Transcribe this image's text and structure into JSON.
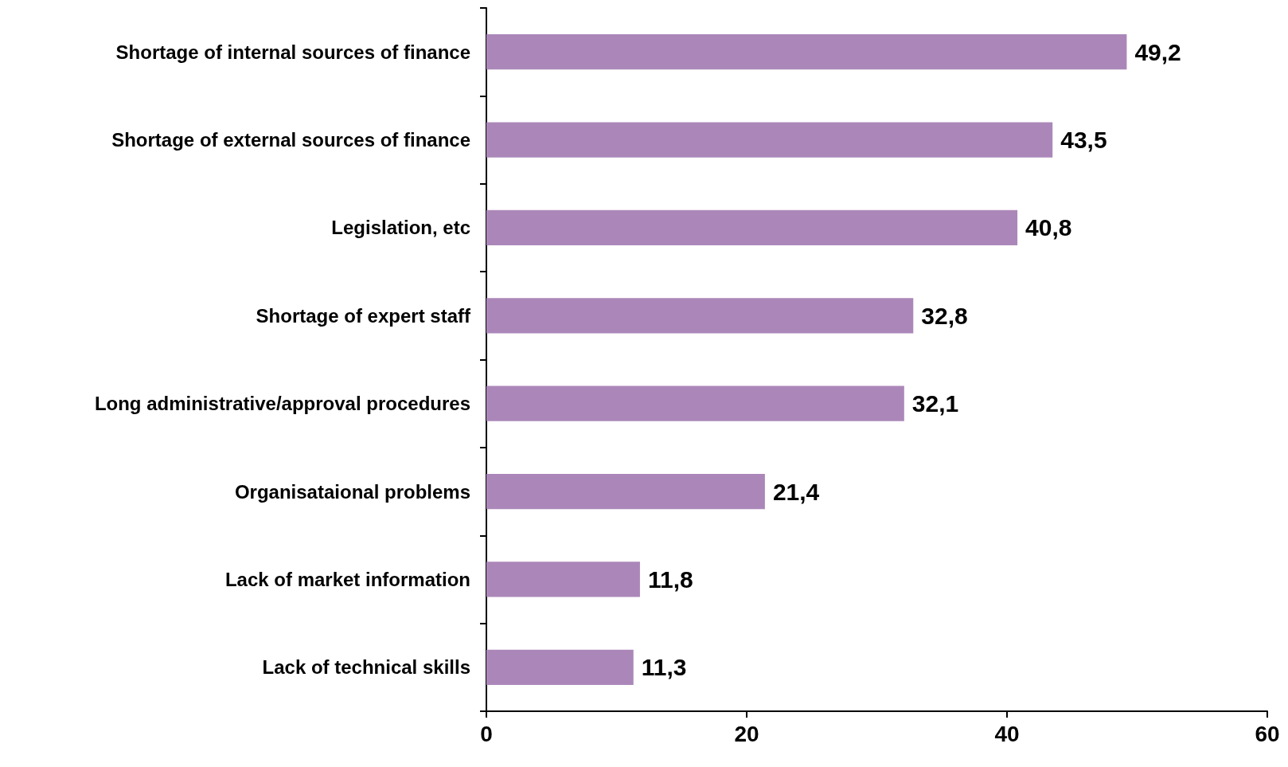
{
  "chart_data": {
    "type": "bar",
    "orientation": "horizontal",
    "categories": [
      "Shortage of internal sources of finance",
      "Shortage of external sources of finance",
      "Legislation, etc",
      "Shortage of expert staff",
      "Long administrative/approval procedures",
      "Organisataional problems",
      "Lack of market information",
      "Lack of technical skills"
    ],
    "values": [
      49.2,
      43.5,
      40.8,
      32.8,
      32.1,
      21.4,
      11.8,
      11.3
    ],
    "value_labels": [
      "49,2",
      "43,5",
      "40,8",
      "32,8",
      "32,1",
      "21,4",
      "11,8",
      "11,3"
    ],
    "color": "#ab87b9",
    "xlim": [
      0,
      60
    ],
    "xticks": [
      0,
      20,
      40,
      60
    ],
    "grid": false
  }
}
